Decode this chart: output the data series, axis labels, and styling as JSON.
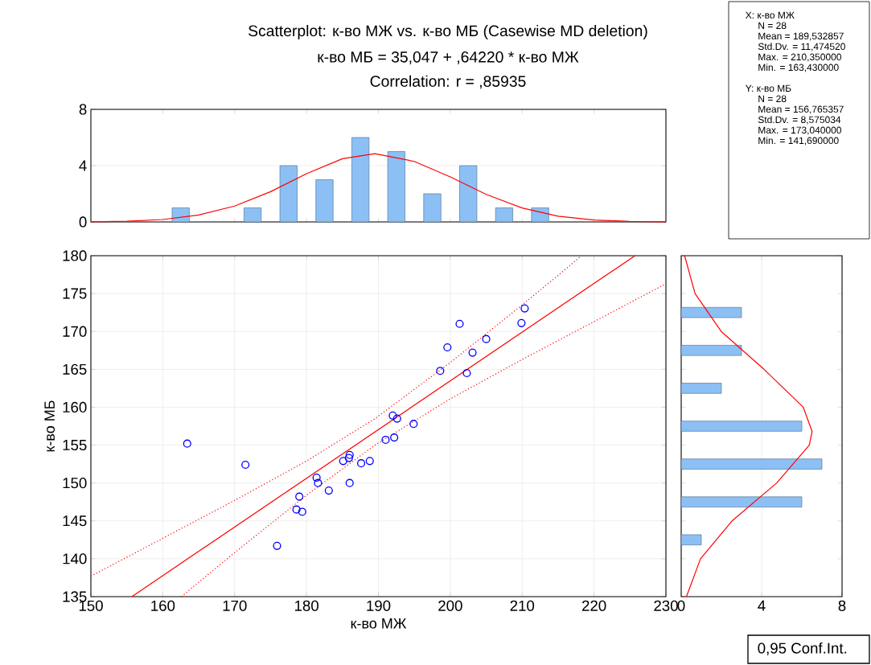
{
  "chart_data": [
    {
      "type": "bar",
      "title": "Scatterplot: к-во МЖ vs. к-во МБ (Casewise MD deletion)",
      "subtitle": "к-во МБ = 35,047 + ,64220 * к-во МЖ",
      "annotations": [
        "Correlation: r = ,85935"
      ],
      "xlim": [
        150,
        230
      ],
      "xticks": [
        160,
        170,
        180,
        190,
        200,
        210,
        220
      ],
      "ylim": [
        0,
        8
      ],
      "yticks": [
        0,
        4,
        8
      ],
      "grid": "y",
      "tick_labels": "y",
      "series": [
        {
          "color": "#8cc0f5",
          "x": [
            162.5,
            172.5,
            177.5,
            182.5,
            187.5,
            192.5,
            197.5,
            202.5,
            207.5,
            212.5
          ],
          "values": [
            1,
            1,
            4,
            3,
            6,
            5,
            2,
            4,
            1,
            1
          ]
        },
        {
          "type": "line",
          "color": "#ff0000",
          "x": [
            150,
            155,
            160,
            165,
            170,
            175,
            180,
            185,
            189.5,
            195,
            200,
            205,
            210,
            215,
            220,
            225,
            230
          ],
          "values": [
            0.01,
            0.05,
            0.17,
            0.49,
            1.13,
            2.15,
            3.43,
            4.49,
            4.85,
            4.3,
            3.2,
            1.96,
            0.99,
            0.41,
            0.14,
            0.04,
            0.01
          ]
        }
      ]
    },
    {
      "type": "scatter",
      "xlabel": "к-во МЖ",
      "ylabel": "к-во МБ",
      "annotations": [
        "X:  к-во МЖ",
        "N = 28",
        "Mean = 189,532857",
        "Std.Dv. = 11,474520",
        "Max. = 210,350000",
        "Min. = 163,430000",
        "Y:  к-во МБ",
        "N = 28",
        "Mean = 156,765357",
        "Std.Dv. = 8,575034",
        "Max. = 173,040000",
        "Min. = 141,690000",
        "0,95 Conf.Int."
      ],
      "xlim": [
        150,
        230
      ],
      "xticks": [
        150,
        160,
        170,
        180,
        190,
        200,
        210,
        220,
        230
      ],
      "ylim": [
        135,
        180
      ],
      "yticks": [
        135,
        140,
        145,
        150,
        155,
        160,
        165,
        170,
        175,
        180
      ],
      "grid": true,
      "series": [
        {
          "color": "#0000ff",
          "marker": "circle",
          "x": [
            163.4,
            171.5,
            175.9,
            178.6,
            179.0,
            179.4,
            181.4,
            181.6,
            183.1,
            185.1,
            185.9,
            186.0,
            186.0,
            187.6,
            188.8,
            191.0,
            192.0,
            192.2,
            192.6,
            194.9,
            198.6,
            199.6,
            201.3,
            202.3,
            203.1,
            205.0,
            209.9,
            210.35
          ],
          "values": [
            155.2,
            152.4,
            141.7,
            146.5,
            148.2,
            146.2,
            150.7,
            150.0,
            149.0,
            152.9,
            153.3,
            153.7,
            150.0,
            152.6,
            152.9,
            155.7,
            158.9,
            156.0,
            158.5,
            157.8,
            164.8,
            167.9,
            171.0,
            164.5,
            167.2,
            169.0,
            171.1,
            173.04
          ]
        },
        {
          "type": "line",
          "color": "#ff0000",
          "line_style": "solid",
          "x": [
            155.7,
            225.7
          ],
          "values": [
            135.0,
            180.0
          ]
        },
        {
          "type": "line",
          "color": "#ff0000",
          "line_style": "dotted",
          "x": [
            150,
            160,
            170,
            180,
            189.53,
            200,
            210,
            215,
            218
          ],
          "values": [
            137.7,
            142.7,
            147.7,
            152.9,
            158.5,
            165.9,
            173.5,
            177.4,
            179.8
          ]
        },
        {
          "type": "line",
          "color": "#ff0000",
          "line_style": "dotted",
          "x": [
            162.6,
            165,
            170,
            180,
            189.53,
            200,
            210,
            220,
            230
          ],
          "values": [
            135.0,
            136.9,
            140.8,
            148.4,
            155.0,
            161.1,
            166.3,
            171.3,
            176.3
          ]
        }
      ]
    },
    {
      "type": "bar",
      "orientation": "horizontal",
      "xlim": [
        0,
        8
      ],
      "xticks": [
        0,
        4,
        8
      ],
      "ylim": [
        135,
        180
      ],
      "yticks": [
        135,
        140,
        145,
        150,
        155,
        160,
        165,
        170,
        175,
        180
      ],
      "grid": "x",
      "tick_labels": "x",
      "series": [
        {
          "color": "#8cc0f5",
          "x": [
            172.5,
            167.5,
            162.5,
            157.5,
            152.5,
            147.5,
            142.5
          ],
          "values": [
            3,
            3,
            2,
            6,
            7,
            6,
            1
          ]
        },
        {
          "type": "line",
          "color": "#ff0000",
          "x": [
            135,
            140,
            145,
            150,
            155,
            156.8,
            160,
            165,
            170,
            175,
            180
          ],
          "values": [
            0.26,
            0.96,
            2.53,
            4.75,
            6.37,
            6.51,
            6.07,
            4.12,
            1.99,
            0.69,
            0.17
          ]
        }
      ]
    }
  ]
}
